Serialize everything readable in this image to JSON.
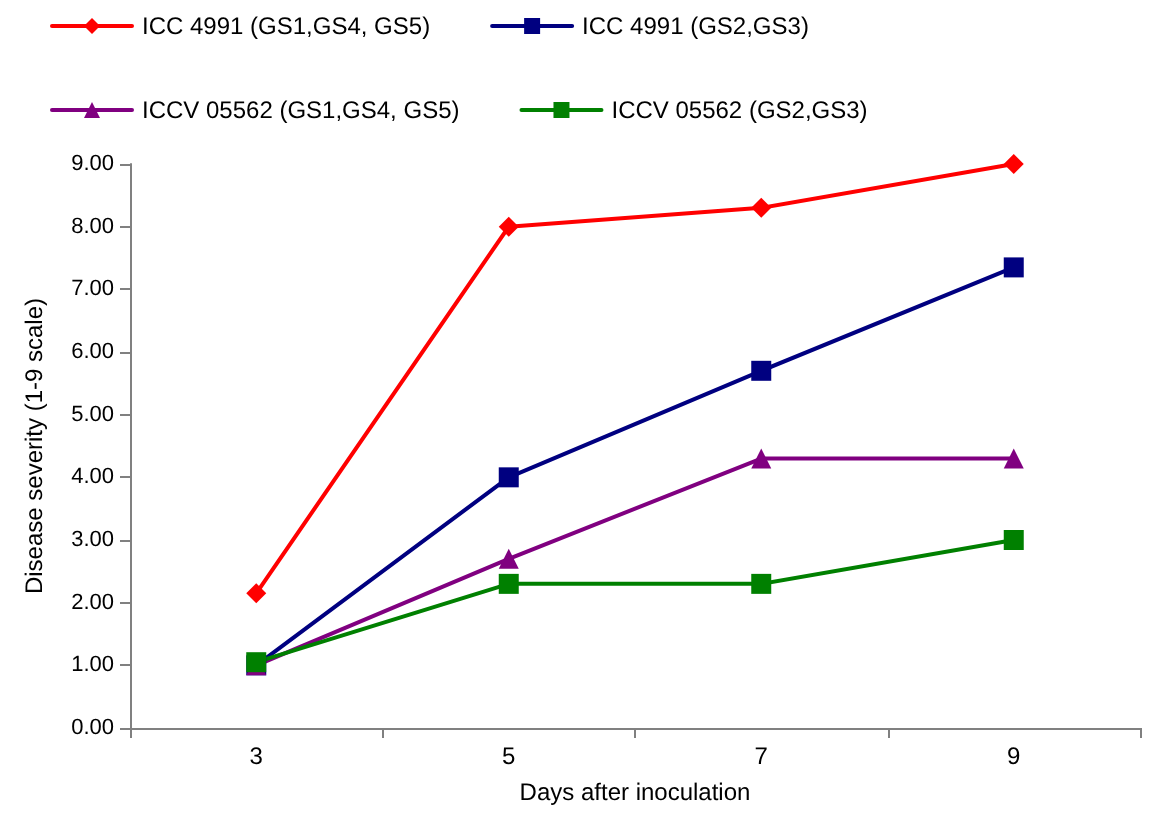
{
  "chart_data": {
    "type": "line",
    "xlabel": "Days after inoculation",
    "ylabel": "Disease severity (1-9 scale)",
    "categories": [
      "3",
      "5",
      "7",
      "9"
    ],
    "series": [
      {
        "name": "ICC 4991 (GS1,GS4, GS5)",
        "color": "#ff0000",
        "marker": "diamond",
        "values": [
          2.15,
          8.0,
          8.3,
          9.0
        ]
      },
      {
        "name": "ICC 4991 (GS2,GS3)",
        "color": "#000080",
        "marker": "square",
        "values": [
          1.0,
          4.0,
          5.7,
          7.35
        ]
      },
      {
        "name": "ICCV 05562 (GS1,GS4, GS5)",
        "color": "#800080",
        "marker": "triangle",
        "values": [
          1.0,
          2.7,
          4.3,
          4.3
        ]
      },
      {
        "name": "ICCV 05562 (GS2,GS3)",
        "color": "#008000",
        "marker": "square",
        "values": [
          1.05,
          2.3,
          2.3,
          3.0
        ]
      }
    ],
    "ylim": [
      0,
      9
    ],
    "yticks": [
      {
        "value": 0,
        "label": "0.00"
      },
      {
        "value": 1,
        "label": "1.00"
      },
      {
        "value": 2,
        "label": "2.00"
      },
      {
        "value": 3,
        "label": "3.00"
      },
      {
        "value": 4,
        "label": "4.00"
      },
      {
        "value": 5,
        "label": "5.00"
      },
      {
        "value": 6,
        "label": "6.00"
      },
      {
        "value": 7,
        "label": "7.00"
      },
      {
        "value": 8,
        "label": "8.00"
      },
      {
        "value": 9,
        "label": "9.00"
      }
    ],
    "grid": false,
    "legend": "top left",
    "line_style": "solid"
  }
}
